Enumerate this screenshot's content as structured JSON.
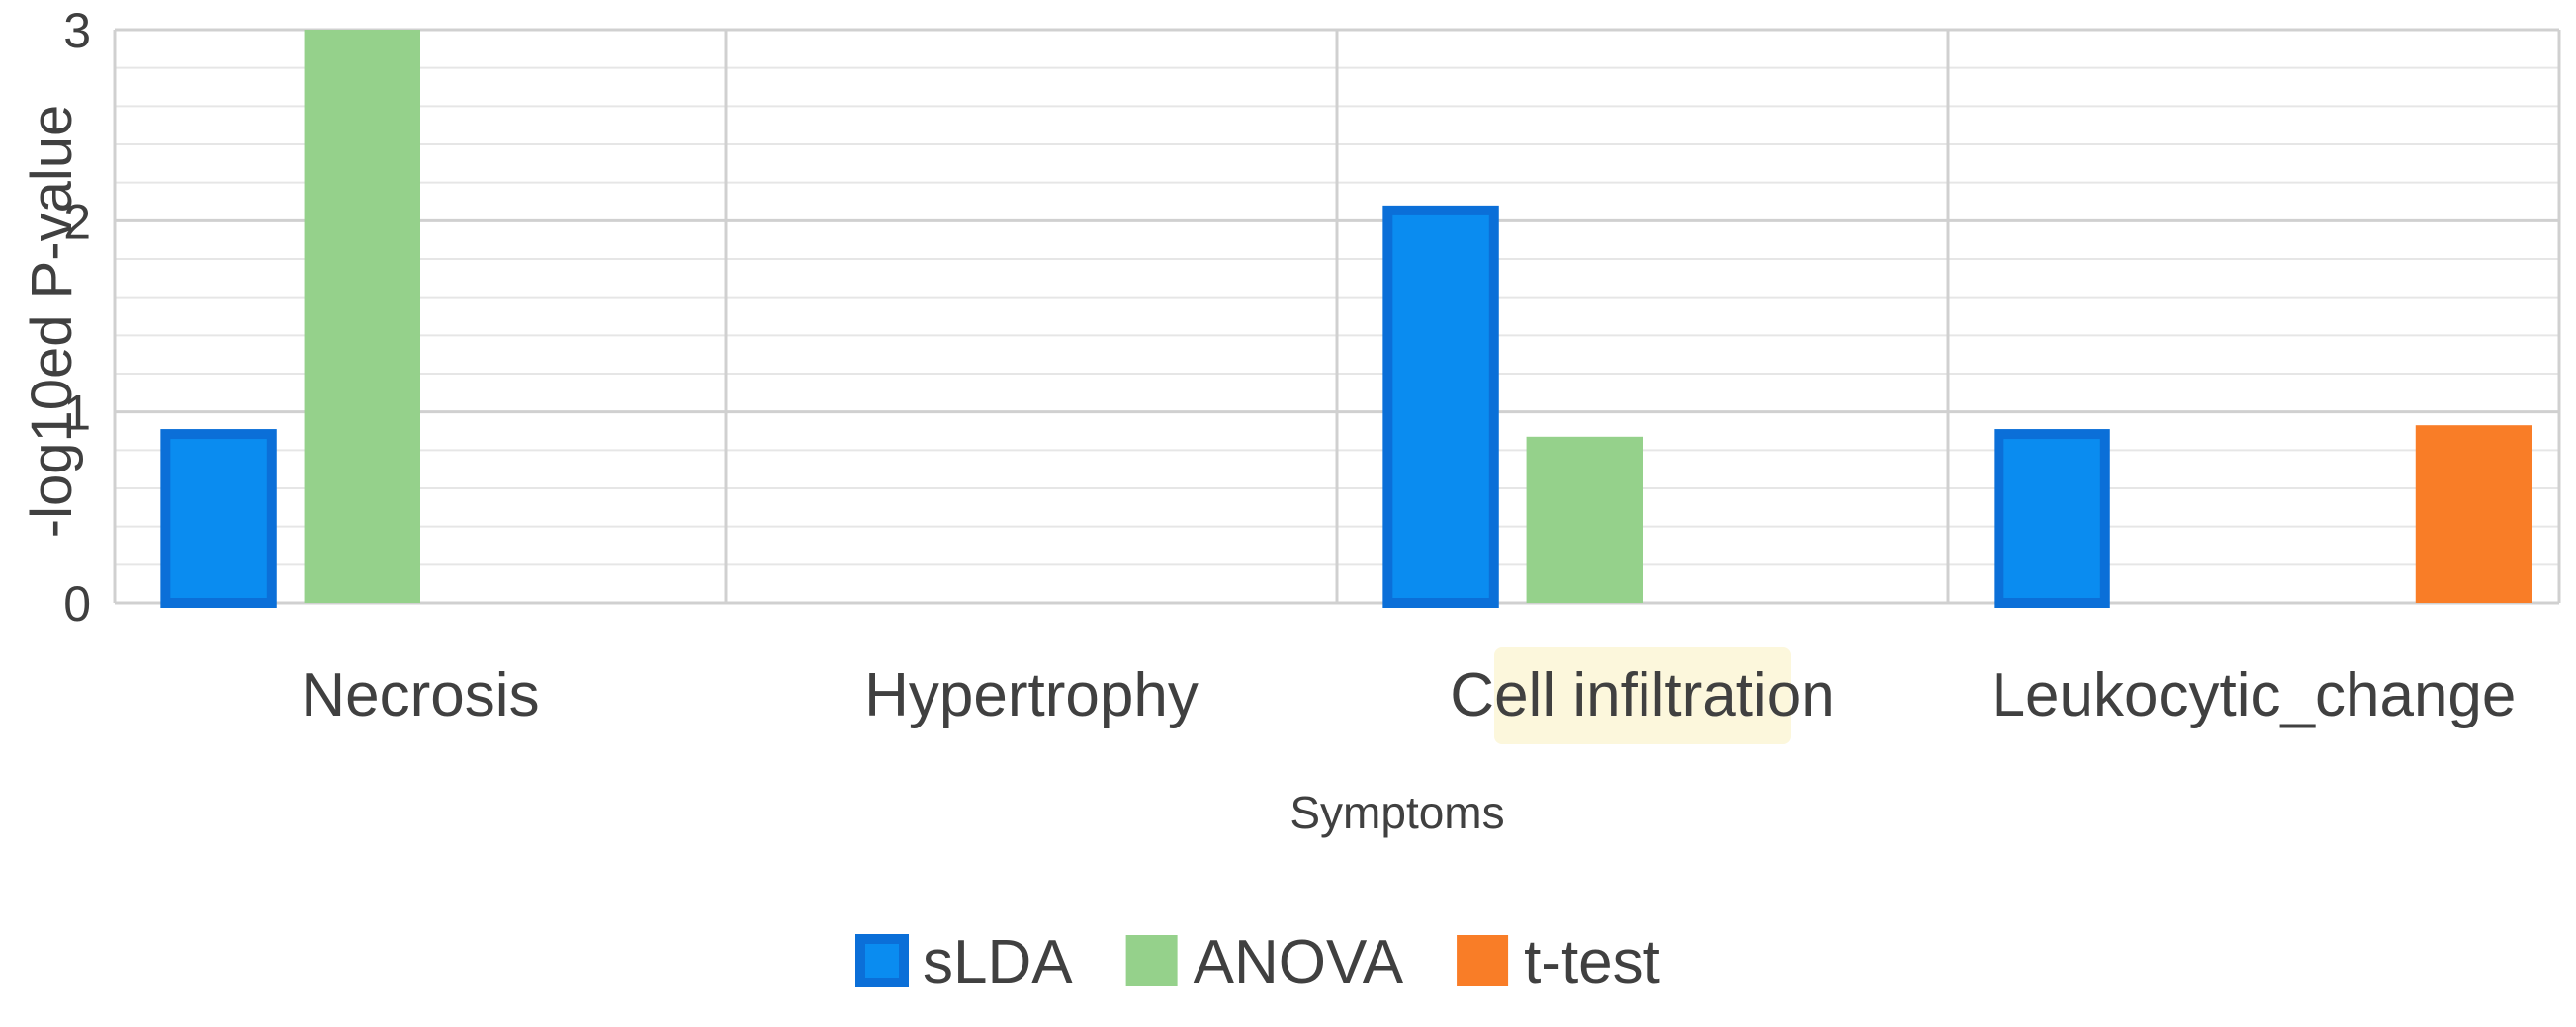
{
  "chart_data": {
    "type": "bar",
    "title": "",
    "xlabel": "Symptoms",
    "ylabel": "-log10ed P-value",
    "ylim": [
      0,
      3
    ],
    "yticks": [
      0,
      1,
      2,
      3
    ],
    "grid": true,
    "legend_position": "bottom",
    "highlighted_category": "Cell infiltration",
    "categories": [
      "Necrosis",
      "Hypertrophy",
      "Cell infiltration",
      "Leukocytic_change"
    ],
    "series": [
      {
        "name": "sLDA",
        "color": "#0b6fd8",
        "values": [
          0.91,
          0,
          2.08,
          0.91
        ]
      },
      {
        "name": "ANOVA",
        "color": "#95d18b",
        "values": [
          3.0,
          0,
          0.87,
          0
        ]
      },
      {
        "name": "t-test",
        "color": "#f97d27",
        "values": [
          0,
          0,
          0,
          0.93
        ]
      }
    ],
    "colors": {
      "grid_major": "#d0d0d0",
      "grid_minor": "#e6e6e6",
      "slda_inner": "#0a8cf0",
      "highlight": "#fcf7dc"
    }
  }
}
